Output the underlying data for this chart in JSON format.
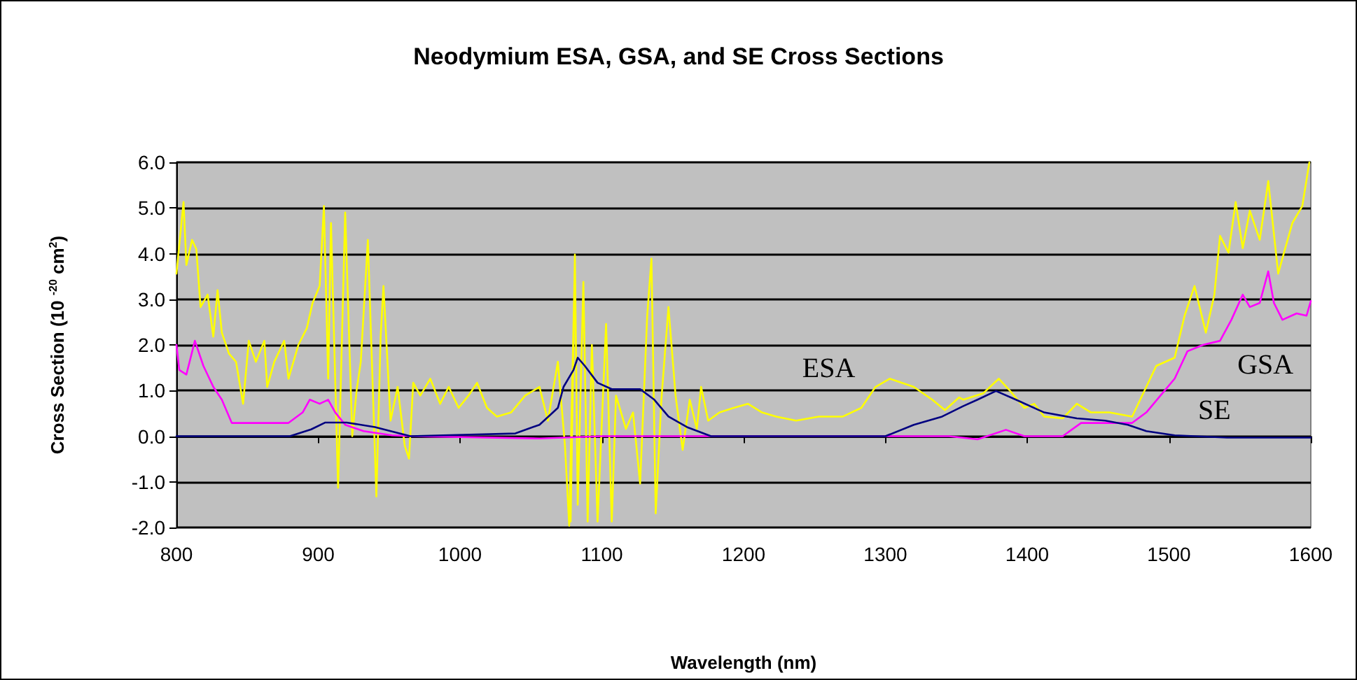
{
  "chart_data": {
    "type": "line",
    "title": "Neodymium ESA, GSA, and SE Cross Sections",
    "xlabel": "Wavelength (nm)",
    "ylabel": "Cross Section (10 $^{-20}$ cm$^{2}$)",
    "xlim": [
      800,
      1600
    ],
    "xticks": [
      800,
      900,
      1000,
      1100,
      1200,
      1300,
      1400,
      1500,
      1600
    ],
    "ylim": [
      -2,
      6
    ],
    "yticks": [
      {
        "value": -2,
        "label": "-2.0"
      },
      {
        "value": -1,
        "label": "-1.0"
      },
      {
        "value": 0,
        "label": "0.0"
      },
      {
        "value": 1,
        "label": "1.0"
      },
      {
        "value": 2,
        "label": "2.0"
      },
      {
        "value": 3,
        "label": "3.0"
      },
      {
        "value": 4,
        "label": "4.0"
      },
      {
        "value": 5,
        "label": "5.0"
      },
      {
        "value": 6,
        "label": "6.0"
      }
    ],
    "grid": "y",
    "marker": "none",
    "line_style": "solid",
    "series": [
      {
        "name": "ESA",
        "color": "#ffff00",
        "x": [
          800,
          805,
          807,
          811,
          814,
          817,
          822,
          826,
          829,
          832,
          837,
          842,
          847,
          851,
          856,
          862,
          864,
          869,
          876,
          879,
          886,
          892,
          896,
          901,
          904,
          907,
          909,
          914,
          919,
          924,
          927,
          930,
          935,
          941,
          944,
          946,
          951,
          956,
          961,
          964,
          967,
          972,
          979,
          986,
          992,
          999,
          1006,
          1012,
          1019,
          1026,
          1036,
          1046,
          1056,
          1062,
          1069,
          1074,
          1077,
          1081,
          1078,
          1081,
          1083,
          1087,
          1090,
          1093,
          1097,
          1103,
          1107,
          1110,
          1117,
          1122,
          1127,
          1132,
          1135,
          1138,
          1142,
          1147,
          1152,
          1157,
          1162,
          1167,
          1170,
          1175,
          1183,
          1193,
          1203,
          1213,
          1223,
          1237,
          1253,
          1270,
          1283,
          1293,
          1303,
          1320,
          1333,
          1342,
          1352,
          1355,
          1369,
          1380,
          1388,
          1398,
          1405,
          1412,
          1425,
          1435,
          1445,
          1458,
          1474,
          1484,
          1491,
          1504,
          1511,
          1518,
          1526,
          1532,
          1536,
          1542,
          1547,
          1552,
          1557,
          1564,
          1570,
          1577,
          1582,
          1587,
          1594,
          1599
        ],
        "values": [
          3.56,
          5.13,
          3.75,
          4.3,
          4.1,
          2.83,
          3.1,
          2.18,
          3.2,
          2.27,
          1.81,
          1.63,
          0.71,
          2.09,
          1.63,
          2.09,
          1.08,
          1.63,
          2.09,
          1.26,
          2.0,
          2.37,
          2.92,
          3.29,
          5.04,
          1.26,
          4.67,
          -1.13,
          4.9,
          0.0,
          0.99,
          1.63,
          4.3,
          -1.32,
          2.18,
          3.29,
          0.34,
          1.08,
          -0.21,
          -0.49,
          1.17,
          0.89,
          1.26,
          0.71,
          1.08,
          0.62,
          0.89,
          1.17,
          0.62,
          0.43,
          0.52,
          0.89,
          1.08,
          0.34,
          1.63,
          -0.21,
          -1.96,
          3.84,
          -1.87,
          3.98,
          -1.5,
          3.38,
          -1.87,
          2.0,
          -1.87,
          2.46,
          -1.87,
          0.89,
          0.16,
          0.52,
          -1.04,
          2.64,
          3.89,
          -1.69,
          0.8,
          2.83,
          0.89,
          -0.3,
          0.8,
          0.16,
          1.08,
          0.34,
          0.52,
          0.62,
          0.71,
          0.52,
          0.43,
          0.34,
          0.43,
          0.43,
          0.62,
          1.08,
          1.26,
          1.08,
          0.8,
          0.57,
          0.85,
          0.8,
          0.94,
          1.26,
          0.99,
          0.62,
          0.71,
          0.43,
          0.39,
          0.71,
          0.52,
          0.52,
          0.43,
          1.08,
          1.54,
          1.72,
          2.64,
          3.29,
          2.27,
          3.1,
          4.39,
          4.02,
          5.13,
          4.12,
          4.94,
          4.3,
          5.59,
          3.56,
          4.12,
          4.67,
          5.04,
          6.0
        ]
      },
      {
        "name": "GSA",
        "color": "#ff00ff",
        "x": [
          800,
          802,
          807,
          813,
          819,
          826,
          832,
          839,
          859,
          879,
          889,
          894,
          901,
          907,
          912,
          919,
          932,
          952,
          966,
          1056,
          1100,
          1345,
          1365,
          1385,
          1398,
          1425,
          1438,
          1451,
          1474,
          1484,
          1494,
          1504,
          1513,
          1524,
          1536,
          1544,
          1552,
          1557,
          1564,
          1570,
          1574,
          1580,
          1590,
          1597,
          1600
        ],
        "values": [
          2.0,
          1.45,
          1.35,
          2.09,
          1.54,
          1.08,
          0.8,
          0.29,
          0.29,
          0.29,
          0.52,
          0.8,
          0.71,
          0.8,
          0.52,
          0.25,
          0.11,
          0.02,
          0,
          -0.05,
          0,
          0,
          -0.07,
          0.14,
          0,
          0,
          0.29,
          0.29,
          0.29,
          0.52,
          0.89,
          1.26,
          1.86,
          2.0,
          2.09,
          2.55,
          3.1,
          2.83,
          2.92,
          3.61,
          2.92,
          2.55,
          2.69,
          2.64,
          2.96
        ]
      },
      {
        "name": "SE",
        "color": "#000080",
        "x": [
          800,
          880,
          895,
          905,
          920,
          940,
          965,
          1039,
          1056,
          1069,
          1073,
          1080,
          1083,
          1088,
          1097,
          1107,
          1127,
          1137,
          1147,
          1160,
          1177,
          1300,
          1320,
          1340,
          1355,
          1365,
          1378,
          1392,
          1412,
          1435,
          1455,
          1471,
          1484,
          1504,
          1541,
          1600
        ],
        "values": [
          0,
          0,
          0.15,
          0.3,
          0.3,
          0.2,
          0,
          0.06,
          0.25,
          0.62,
          1.08,
          1.45,
          1.72,
          1.54,
          1.17,
          1.03,
          1.03,
          0.8,
          0.43,
          0.2,
          0,
          0,
          0.25,
          0.43,
          0.66,
          0.8,
          0.99,
          0.8,
          0.52,
          0.39,
          0.34,
          0.25,
          0.11,
          0.02,
          -0.03,
          -0.03
        ]
      }
    ]
  }
}
